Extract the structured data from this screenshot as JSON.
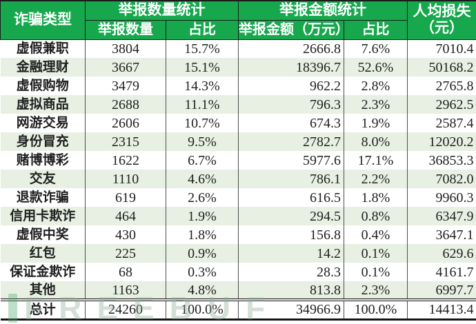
{
  "table": {
    "header": {
      "type": "诈骗类型",
      "count_group": "举报数量统计",
      "amount_group": "举报金额统计",
      "avg_line1": "人均损失",
      "avg_line2": "（元）",
      "sub_count": "举报数量",
      "sub_count_pct": "占比",
      "sub_amount": "举报金额（万元）",
      "sub_amount_pct": "占比"
    },
    "rows": [
      {
        "type": "虚假兼职",
        "count": "3804",
        "count_pct": "15.7%",
        "amount": "2666.8",
        "amount_pct": "7.6%",
        "avg_loss": "7010.4"
      },
      {
        "type": "金融理财",
        "count": "3667",
        "count_pct": "15.1%",
        "amount": "18396.7",
        "amount_pct": "52.6%",
        "avg_loss": "50168.2"
      },
      {
        "type": "虚假购物",
        "count": "3479",
        "count_pct": "14.3%",
        "amount": "962.2",
        "amount_pct": "2.8%",
        "avg_loss": "2765.8"
      },
      {
        "type": "虚拟商品",
        "count": "2688",
        "count_pct": "11.1%",
        "amount": "796.3",
        "amount_pct": "2.3%",
        "avg_loss": "2962.5"
      },
      {
        "type": "网游交易",
        "count": "2606",
        "count_pct": "10.7%",
        "amount": "674.3",
        "amount_pct": "1.9%",
        "avg_loss": "2587.4"
      },
      {
        "type": "身份冒充",
        "count": "2315",
        "count_pct": "9.5%",
        "amount": "2782.7",
        "amount_pct": "8.0%",
        "avg_loss": "12020.2"
      },
      {
        "type": "赌博博彩",
        "count": "1622",
        "count_pct": "6.7%",
        "amount": "5977.6",
        "amount_pct": "17.1%",
        "avg_loss": "36853.3"
      },
      {
        "type": "交友",
        "count": "1110",
        "count_pct": "4.6%",
        "amount": "786.1",
        "amount_pct": "2.2%",
        "avg_loss": "7082.0"
      },
      {
        "type": "退款诈骗",
        "count": "619",
        "count_pct": "2.6%",
        "amount": "616.5",
        "amount_pct": "1.8%",
        "avg_loss": "9960.3"
      },
      {
        "type": "信用卡欺诈",
        "count": "464",
        "count_pct": "1.9%",
        "amount": "294.5",
        "amount_pct": "0.8%",
        "avg_loss": "6347.9"
      },
      {
        "type": "虚假中奖",
        "count": "430",
        "count_pct": "1.8%",
        "amount": "156.8",
        "amount_pct": "0.4%",
        "avg_loss": "3647.1"
      },
      {
        "type": "红包",
        "count": "225",
        "count_pct": "0.9%",
        "amount": "14.2",
        "amount_pct": "0.1%",
        "avg_loss": "629.6"
      },
      {
        "type": "保证金欺诈",
        "count": "68",
        "count_pct": "0.3%",
        "amount": "28.3",
        "amount_pct": "0.1%",
        "avg_loss": "4161.7"
      },
      {
        "type": "其他",
        "count": "1163",
        "count_pct": "4.8%",
        "amount": "813.8",
        "amount_pct": "2.3%",
        "avg_loss": "6997.7"
      }
    ],
    "total": {
      "type": "总计",
      "count": "24260",
      "count_pct": "100.0%",
      "amount": "34966.9",
      "amount_pct": "100.0%",
      "avg_loss": "14413.4"
    }
  },
  "watermark": {
    "text": "FREEBUF"
  },
  "colors": {
    "header_green": "#17a84e",
    "stripe_green": "#e7f0e3",
    "border_dark": "#1a1a1a",
    "text": "#1f1f1f",
    "watermark": "#8fae97"
  },
  "chart_data": {
    "type": "table",
    "title": "诈骗类型举报统计表",
    "columns": [
      "诈骗类型",
      "举报数量",
      "举报数量占比",
      "举报金额（万元）",
      "举报金额占比",
      "人均损失（元）"
    ],
    "rows": [
      [
        "虚假兼职",
        3804,
        "15.7%",
        2666.8,
        "7.6%",
        7010.4
      ],
      [
        "金融理财",
        3667,
        "15.1%",
        18396.7,
        "52.6%",
        50168.2
      ],
      [
        "虚假购物",
        3479,
        "14.3%",
        962.2,
        "2.8%",
        2765.8
      ],
      [
        "虚拟商品",
        2688,
        "11.1%",
        796.3,
        "2.3%",
        2962.5
      ],
      [
        "网游交易",
        2606,
        "10.7%",
        674.3,
        "1.9%",
        2587.4
      ],
      [
        "身份冒充",
        2315,
        "9.5%",
        2782.7,
        "8.0%",
        12020.2
      ],
      [
        "赌博博彩",
        1622,
        "6.7%",
        5977.6,
        "17.1%",
        36853.3
      ],
      [
        "交友",
        1110,
        "4.6%",
        786.1,
        "2.2%",
        7082.0
      ],
      [
        "退款诈骗",
        619,
        "2.6%",
        616.5,
        "1.8%",
        9960.3
      ],
      [
        "信用卡欺诈",
        464,
        "1.9%",
        294.5,
        "0.8%",
        6347.9
      ],
      [
        "虚假中奖",
        430,
        "1.8%",
        156.8,
        "0.4%",
        3647.1
      ],
      [
        "红包",
        225,
        "0.9%",
        14.2,
        "0.1%",
        629.6
      ],
      [
        "保证金欺诈",
        68,
        "0.3%",
        28.3,
        "0.1%",
        4161.7
      ],
      [
        "其他",
        1163,
        "4.8%",
        813.8,
        "2.3%",
        6997.7
      ]
    ],
    "total_row": [
      "总计",
      24260,
      "100.0%",
      34966.9,
      "100.0%",
      14413.4
    ]
  }
}
